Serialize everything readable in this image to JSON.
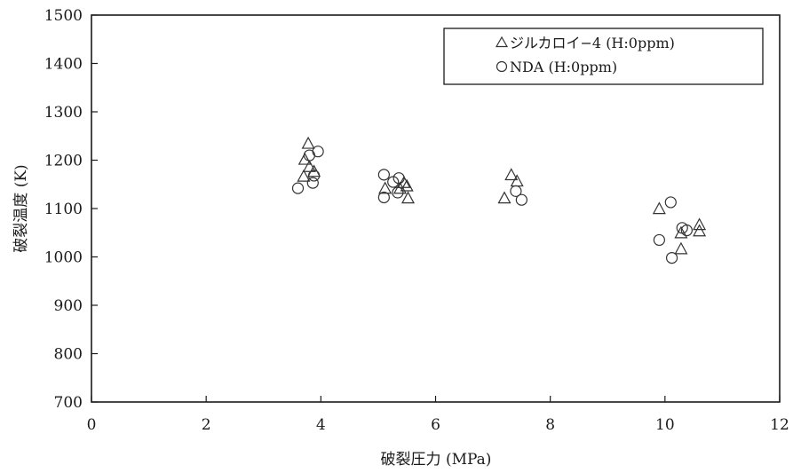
{
  "chart_data": {
    "type": "scatter",
    "xlabel": "破裂圧力 (MPa)",
    "ylabel": "破裂温度 (K)",
    "xlim": [
      0,
      12
    ],
    "ylim": [
      700,
      1500
    ],
    "xticks": [
      0,
      2,
      4,
      6,
      8,
      10,
      12
    ],
    "yticks": [
      700,
      800,
      900,
      1000,
      1100,
      1200,
      1300,
      1400,
      1500
    ],
    "grid": false,
    "legend_position": "top-right",
    "marker_color": "#333333",
    "series": [
      {
        "name": "ジルカロイ−4 (H:0ppm)",
        "marker": "triangle",
        "points": [
          {
            "x": 3.78,
            "y": 1233
          },
          {
            "x": 3.72,
            "y": 1200
          },
          {
            "x": 3.8,
            "y": 1185
          },
          {
            "x": 3.88,
            "y": 1175
          },
          {
            "x": 3.7,
            "y": 1165
          },
          {
            "x": 5.12,
            "y": 1140
          },
          {
            "x": 5.38,
            "y": 1140
          },
          {
            "x": 5.45,
            "y": 1152
          },
          {
            "x": 5.5,
            "y": 1145
          },
          {
            "x": 5.52,
            "y": 1120
          },
          {
            "x": 7.32,
            "y": 1168
          },
          {
            "x": 7.42,
            "y": 1155
          },
          {
            "x": 7.2,
            "y": 1120
          },
          {
            "x": 9.9,
            "y": 1098
          },
          {
            "x": 10.28,
            "y": 1048
          },
          {
            "x": 10.28,
            "y": 1015
          },
          {
            "x": 10.6,
            "y": 1065
          },
          {
            "x": 10.6,
            "y": 1052
          }
        ]
      },
      {
        "name": "NDA (H:0ppm)",
        "marker": "circle",
        "points": [
          {
            "x": 3.8,
            "y": 1210
          },
          {
            "x": 3.95,
            "y": 1218
          },
          {
            "x": 3.88,
            "y": 1168
          },
          {
            "x": 3.86,
            "y": 1153
          },
          {
            "x": 3.6,
            "y": 1142
          },
          {
            "x": 5.1,
            "y": 1170
          },
          {
            "x": 5.36,
            "y": 1163
          },
          {
            "x": 5.26,
            "y": 1155
          },
          {
            "x": 5.34,
            "y": 1133
          },
          {
            "x": 5.1,
            "y": 1123
          },
          {
            "x": 7.4,
            "y": 1136
          },
          {
            "x": 7.5,
            "y": 1118
          },
          {
            "x": 10.1,
            "y": 1113
          },
          {
            "x": 10.3,
            "y": 1060
          },
          {
            "x": 10.38,
            "y": 1055
          },
          {
            "x": 9.9,
            "y": 1035
          },
          {
            "x": 10.12,
            "y": 998
          }
        ]
      }
    ]
  }
}
